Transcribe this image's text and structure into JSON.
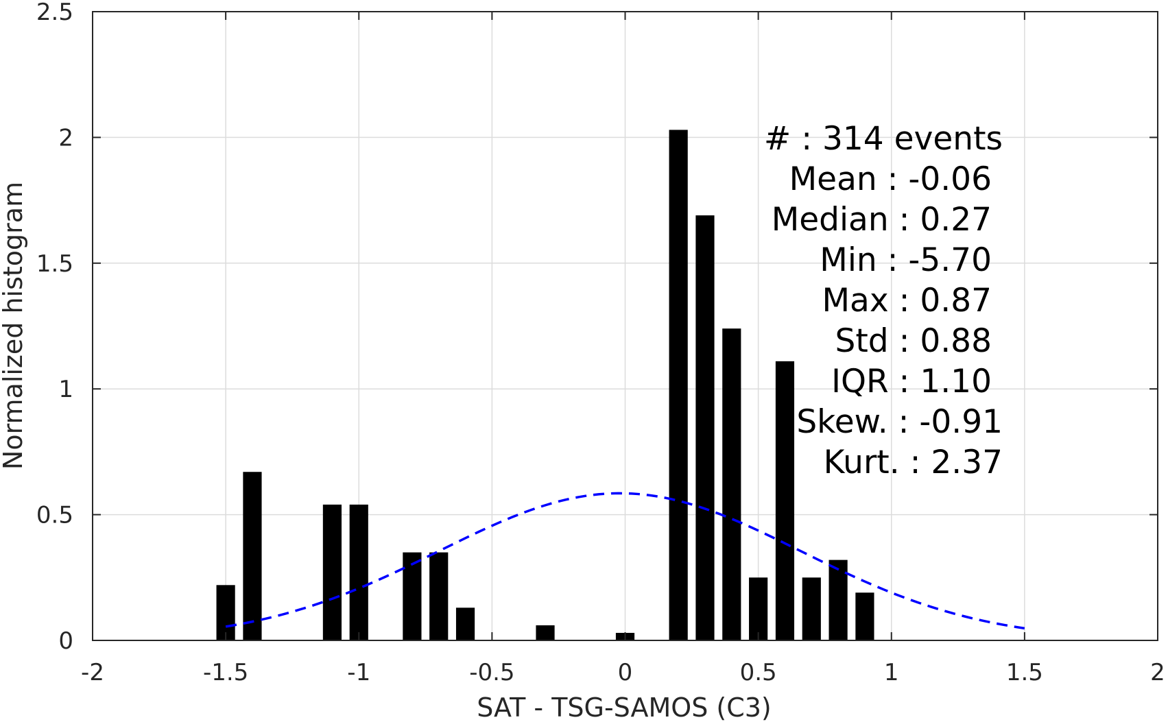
{
  "chart_data": {
    "type": "bar",
    "xlabel": "SAT - TSG-SAMOS (C3)",
    "ylabel": "Normalized histogram",
    "xlim": [
      -2,
      2
    ],
    "ylim": [
      0,
      2.5
    ],
    "x_ticks": [
      -2,
      -1.5,
      -1,
      -0.5,
      0,
      0.5,
      1,
      1.5,
      2
    ],
    "x_tick_labels": [
      "-2",
      "-1.5",
      "-1",
      "-0.5",
      "0",
      "0.5",
      "1",
      "1.5",
      "2"
    ],
    "y_ticks": [
      0,
      0.5,
      1,
      1.5,
      2,
      2.5
    ],
    "y_tick_labels": [
      "0",
      "0.5",
      "1",
      "1.5",
      "2",
      "2.5"
    ],
    "grid": true,
    "bar_width": 0.07,
    "bar_color": "#000000",
    "fit_color": "#0000ff",
    "bars": [
      {
        "x": -1.5,
        "y": 0.22
      },
      {
        "x": -1.4,
        "y": 0.67
      },
      {
        "x": -1.1,
        "y": 0.54
      },
      {
        "x": -1.0,
        "y": 0.54
      },
      {
        "x": -0.8,
        "y": 0.35
      },
      {
        "x": -0.7,
        "y": 0.35
      },
      {
        "x": -0.6,
        "y": 0.13
      },
      {
        "x": -0.3,
        "y": 0.06
      },
      {
        "x": 0.0,
        "y": 0.03
      },
      {
        "x": 0.2,
        "y": 2.03
      },
      {
        "x": 0.3,
        "y": 1.69
      },
      {
        "x": 0.4,
        "y": 1.24
      },
      {
        "x": 0.5,
        "y": 0.25
      },
      {
        "x": 0.6,
        "y": 1.11
      },
      {
        "x": 0.7,
        "y": 0.25
      },
      {
        "x": 0.8,
        "y": 0.32
      },
      {
        "x": 0.9,
        "y": 0.19
      }
    ],
    "fit_curve": {
      "style": "dashed",
      "mean": -0.02,
      "std": 0.68,
      "peak": 0.585,
      "x_range": [
        -1.5,
        1.5
      ]
    },
    "annotations": [
      "#  : 314 events",
      "Mean : -0.06",
      "Median : 0.27",
      "Min : -5.70",
      "Max : 0.87",
      "Std : 0.88",
      "IQR : 1.10",
      "Skew. : -0.91",
      "Kurt. : 2.37"
    ]
  }
}
